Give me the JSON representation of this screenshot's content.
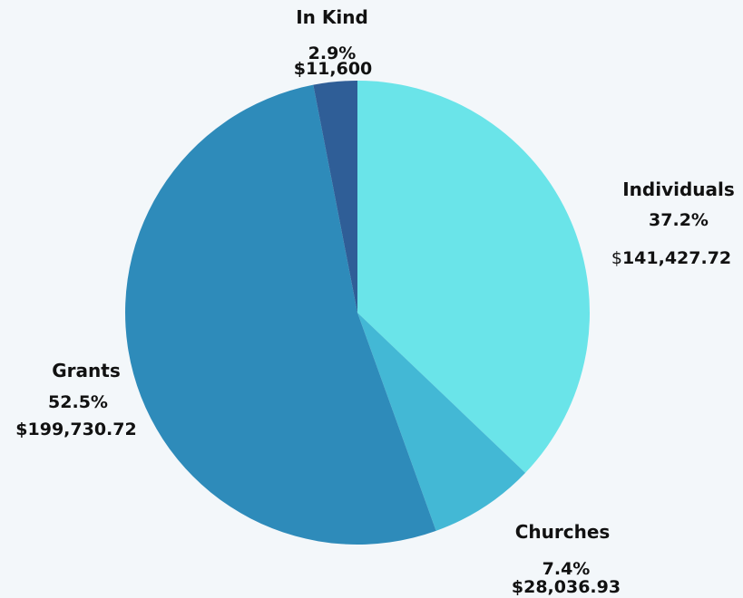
{
  "chart_data": {
    "type": "pie",
    "slices": [
      {
        "name": "Individuals",
        "pct_label": "37.2%",
        "amount_prefix": "$",
        "amount": "141,427.72",
        "value": 141427.72,
        "color": "#6ae4e9"
      },
      {
        "name": "Churches",
        "pct_label": "7.4%",
        "amount_prefix": "",
        "amount": "$28,036.93",
        "value": 28036.93,
        "color": "#43b8d5"
      },
      {
        "name": "Grants",
        "pct_label": "52.5%",
        "amount_prefix": "",
        "amount": "$199,730.72",
        "value": 199730.72,
        "color": "#2e8bba"
      },
      {
        "name": "In Kind",
        "pct_label": "2.9%",
        "amount_prefix": "",
        "amount": "$11,600",
        "value": 11600,
        "color": "#2f5e97"
      }
    ],
    "start_angle_deg": 0,
    "direction": "clockwise",
    "legend": "none"
  },
  "background": "#f3f7fa"
}
